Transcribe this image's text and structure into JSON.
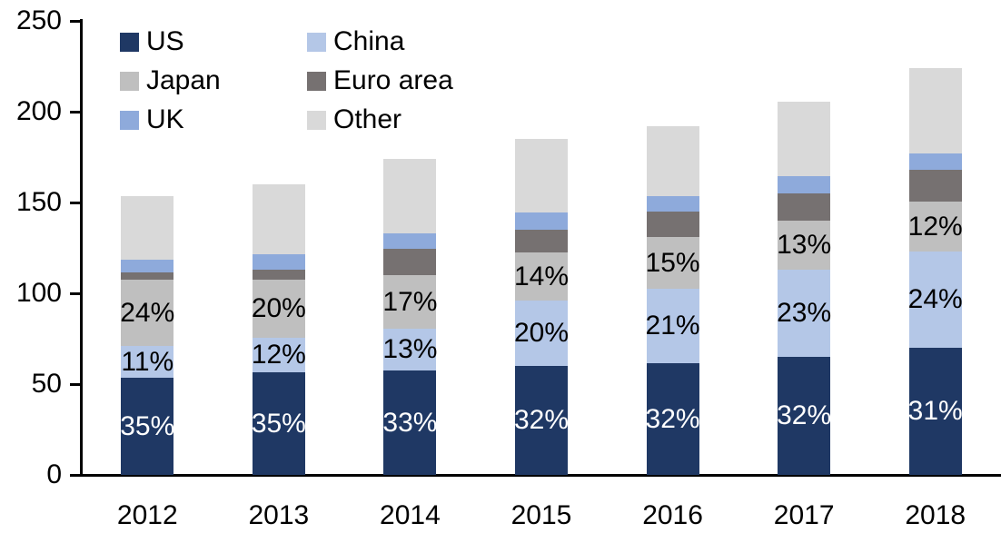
{
  "chart_data": {
    "type": "bar",
    "stacked": true,
    "title": "",
    "categories": [
      "2012",
      "2013",
      "2014",
      "2015",
      "2016",
      "2017",
      "2018"
    ],
    "series": [
      {
        "name": "US",
        "color": "#1F3864",
        "values": [
          53.5,
          56.5,
          57.5,
          60,
          61.5,
          65,
          70
        ],
        "labels": [
          "35%",
          "35%",
          "33%",
          "32%",
          "32%",
          "32%",
          "31%"
        ],
        "label_color": "#FFFFFF"
      },
      {
        "name": "China",
        "color": "#B4C7E7",
        "values": [
          17.5,
          19,
          23,
          36,
          41,
          48,
          53
        ],
        "labels": [
          "11%",
          "12%",
          "13%",
          "20%",
          "21%",
          "23%",
          "24%"
        ],
        "label_color": "#000000"
      },
      {
        "name": "Japan",
        "color": "#BFBFBF",
        "values": [
          36.5,
          32,
          29.5,
          26.5,
          28.5,
          27,
          27.5
        ],
        "labels": [
          "24%",
          "20%",
          "17%",
          "14%",
          "15%",
          "13%",
          "12%"
        ],
        "label_color": "#000000"
      },
      {
        "name": "Euro area",
        "color": "#767171",
        "values": [
          4,
          5.5,
          14.5,
          12.5,
          14,
          15,
          17.5
        ]
      },
      {
        "name": "UK",
        "color": "#8EAADB",
        "values": [
          7,
          8.5,
          8.5,
          9.5,
          8.5,
          9.5,
          9
        ]
      },
      {
        "name": "Other",
        "color": "#D9D9D9",
        "values": [
          35,
          38.5,
          41,
          40.5,
          38.5,
          41,
          47
        ]
      }
    ],
    "totals": [
      153.5,
      160,
      174,
      185,
      192,
      205.5,
      224
    ],
    "y_axis": {
      "min": 0,
      "max": 250,
      "step": 50,
      "tick_labels": [
        "0",
        "50",
        "100",
        "150",
        "200",
        "250"
      ]
    },
    "xlabel": "",
    "ylabel": "",
    "grid": false,
    "legend": {
      "position": "top-left",
      "columns": 2,
      "order": [
        "US",
        "China",
        "Japan",
        "Euro area",
        "UK",
        "Other"
      ]
    },
    "axis_color": "#000000",
    "background": "#FFFFFF"
  }
}
